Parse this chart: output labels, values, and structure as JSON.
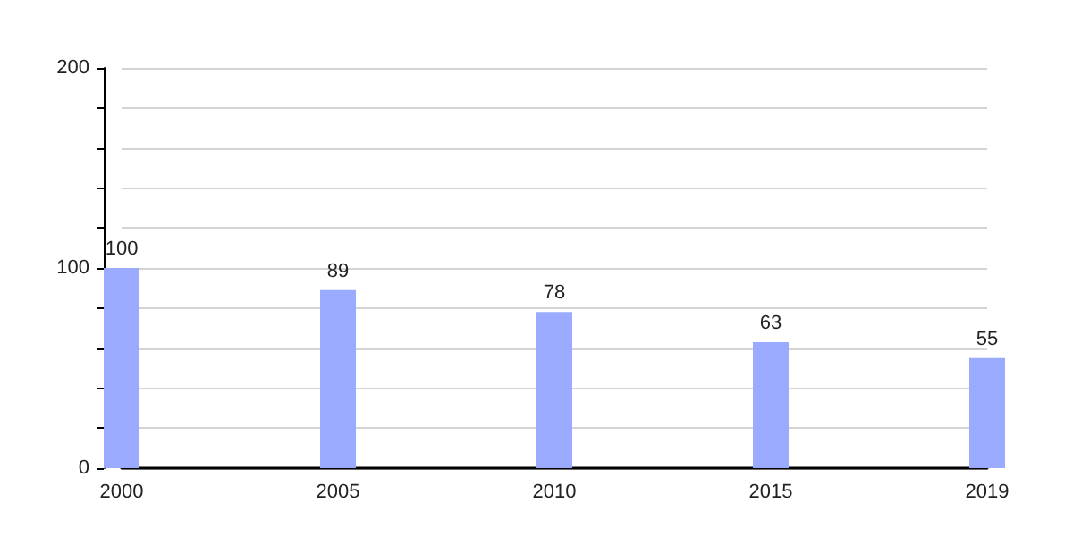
{
  "chart_data": {
    "type": "bar",
    "categories": [
      "2000",
      "2005",
      "2010",
      "2015",
      "2019"
    ],
    "values": [
      100,
      89,
      78,
      63,
      55
    ],
    "color": "#99aaff",
    "ylim": [
      0,
      200
    ],
    "yticks": [
      0,
      {
        "value": 20,
        "label": null
      },
      {
        "value": 40,
        "label": null
      },
      {
        "value": 60,
        "label": null
      },
      {
        "value": 80,
        "label": null
      },
      100,
      {
        "value": 120,
        "label": null
      },
      {
        "value": 140,
        "label": null
      },
      {
        "value": 160,
        "label": null
      },
      {
        "value": 180,
        "label": null
      },
      200
    ],
    "grid": "y",
    "data_labels": true
  }
}
